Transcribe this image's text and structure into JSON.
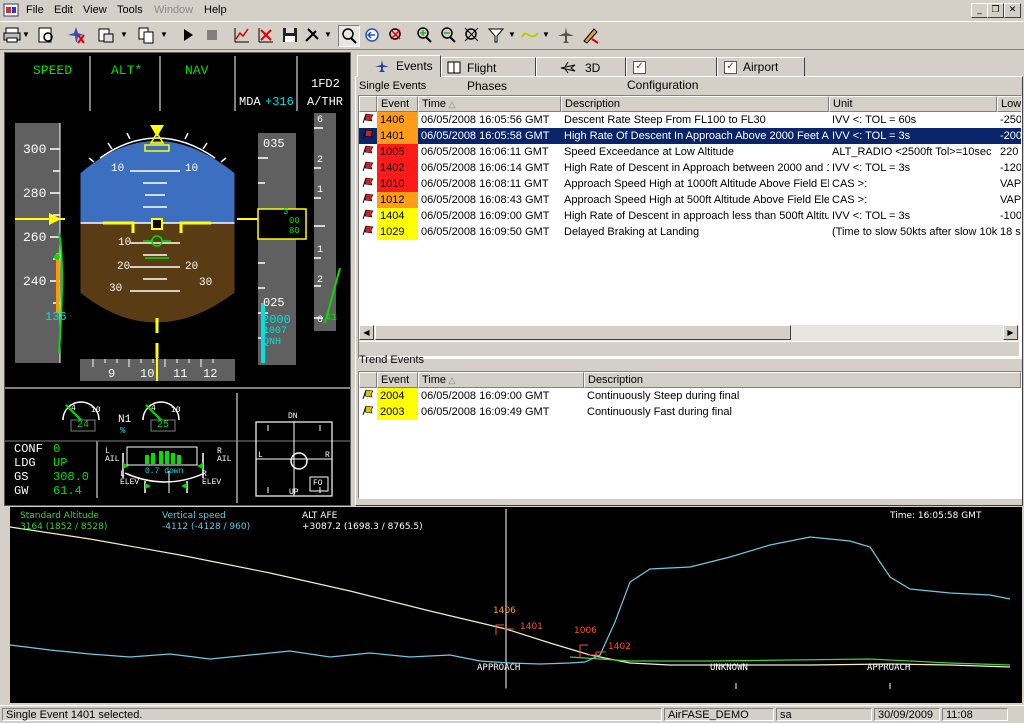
{
  "menu": {
    "items": [
      "File",
      "Edit",
      "View",
      "Tools",
      "Window",
      "Help"
    ],
    "disabled": [
      "Window"
    ]
  },
  "window_controls": {
    "minimize": "_",
    "restore": "❐",
    "close": "✕"
  },
  "pfd": {
    "fma": {
      "speed": "SPEED",
      "alt": "ALT*",
      "nav": "NAV",
      "fd": "1FD2",
      "athr": "A/THR",
      "mda_label": "MDA",
      "mda_value": "+316"
    },
    "speed_tape": {
      "ticks": [
        "300",
        "280",
        "260",
        "240"
      ],
      "target": "136"
    },
    "pitch_labels": [
      "10",
      "10",
      "10",
      "20",
      "20",
      "30",
      "30"
    ],
    "alt_tape": {
      "ticks": [
        "035",
        "025"
      ],
      "current": [
        "3",
        "00",
        "80"
      ],
      "target": "2000",
      "baro": "1007",
      "qnh": "QNH"
    },
    "vs_scale": [
      "6",
      "2",
      "1",
      "1",
      "2",
      "6"
    ],
    "vs_value": "41",
    "heading": [
      "9",
      "10",
      "11",
      "12"
    ],
    "n1": {
      "label": "N1",
      "unit": "%",
      "left": "24",
      "right": "25",
      "scale_low": "4",
      "scale_high": "10"
    },
    "conf": {
      "labels": [
        "CONF",
        "LDG",
        "GS",
        "GW"
      ],
      "values": [
        "0",
        "UP",
        "308.0",
        "61.4"
      ]
    },
    "surfaces": {
      "l_ail": "L\nAIL",
      "r_ail": "R\nAIL",
      "l_elev": "L\nELEV",
      "r_elev": "R\nELEV",
      "pitch": "0.7 down"
    },
    "stick": {
      "up": "UP",
      "dn": "DN",
      "l": "L",
      "r": "R",
      "fo": "FO"
    }
  },
  "tabs": [
    {
      "label": "Events",
      "icon": "plane-icon",
      "active": true
    },
    {
      "label": "Flight Phases",
      "icon": "book-icon",
      "active": false
    },
    {
      "label": "3D",
      "icon": "plane3d-icon",
      "active": false
    },
    {
      "label": "Configuration",
      "icon": "checkbox-icon",
      "active": false
    },
    {
      "label": "Airport",
      "icon": "checkbox-icon",
      "active": false
    }
  ],
  "single_events": {
    "title": "Single Events",
    "columns": [
      "Event",
      "Time",
      "Description",
      "Unit",
      "Low"
    ],
    "rows": [
      {
        "id": "1406",
        "color": "#ff9c1a",
        "time": "06/05/2008 16:05:56 GMT",
        "desc": "Descent Rate Steep From FL100 to FL30",
        "unit": "IVV <:  TOL = 60s",
        "low": "-2500"
      },
      {
        "id": "1401",
        "color": "#ff9c1a",
        "time": "06/05/2008 16:05:58 GMT",
        "desc": "High Rate Of Descent In Approach Above 2000 Feet AGL",
        "unit": "IVV <:  TOL = 3s",
        "low": "-2000",
        "selected": true
      },
      {
        "id": "1005",
        "color": "#ff1a1a",
        "time": "06/05/2008 16:06:11 GMT",
        "desc": "Speed Exceedance at Low Altitude",
        "unit": "ALT_RADIO <2500ft Tol>=10sec",
        "low": "220 ft"
      },
      {
        "id": "1402",
        "color": "#ff1a1a",
        "time": "06/05/2008 16:06:14 GMT",
        "desc": "High Rate of Descent in Approach between 2000 and 1000 ft",
        "unit": "IVV <:  TOL = 3s",
        "low": "-1200"
      },
      {
        "id": "1010",
        "color": "#ff1a1a",
        "time": "06/05/2008 16:08:11 GMT",
        "desc": "Approach Speed High at 1000ft Altitude Above Field Elevation",
        "unit": "CAS >:",
        "low": "VAPP"
      },
      {
        "id": "1012",
        "color": "#ff9c1a",
        "time": "06/05/2008 16:08:43 GMT",
        "desc": "Approach Speed High at 500ft Altitude Above Field Elevation",
        "unit": "CAS >:",
        "low": "VAPP"
      },
      {
        "id": "1404",
        "color": "#ffff00",
        "time": "06/05/2008 16:09:00 GMT",
        "desc": "High Rate of Descent in approach less than 500ft  Altitude",
        "unit": "IVV <:  TOL = 3s",
        "low": "-1000"
      },
      {
        "id": "1029",
        "color": "#ffff00",
        "time": "06/05/2008 16:09:50 GMT",
        "desc": "Delayed Braking at Landing",
        "unit": "(Time to slow 50kts after slow 10kts",
        "low": "18 s"
      }
    ]
  },
  "trend_events": {
    "title": "Trend Events",
    "columns": [
      "Event",
      "Time",
      "Description"
    ],
    "rows": [
      {
        "id": "2004",
        "color": "#ffff00",
        "time": "06/05/2008 16:09:00 GMT",
        "desc": "Continuously Steep during final"
      },
      {
        "id": "2003",
        "color": "#ffff00",
        "time": "06/05/2008 16:09:49 GMT",
        "desc": "Continuously Fast during final"
      }
    ]
  },
  "graph": {
    "legend": [
      {
        "name": "Standard Altitude",
        "value": "3164 (1852 / 8528)",
        "color": "#40d040"
      },
      {
        "name": "Vertical speed",
        "value": "-4112 (-4128 / 960)",
        "color": "#60c8e0"
      },
      {
        "name": "ALT AFE",
        "value": "+3087.2 (1698.3 / 8765.5)",
        "color": "#ffffff"
      }
    ],
    "time_label": "Time: 16:05:58 GMT",
    "phases": [
      "APPROACH",
      "UNKNOWN",
      "APPROACH"
    ],
    "event_markers": [
      "1406",
      "1401",
      "1006",
      "1402"
    ]
  },
  "status": {
    "message": "Single Event 1401 selected.",
    "app": "AirFASE_DEMO",
    "user": "sa",
    "date": "30/09/2009",
    "time": "11:08"
  }
}
